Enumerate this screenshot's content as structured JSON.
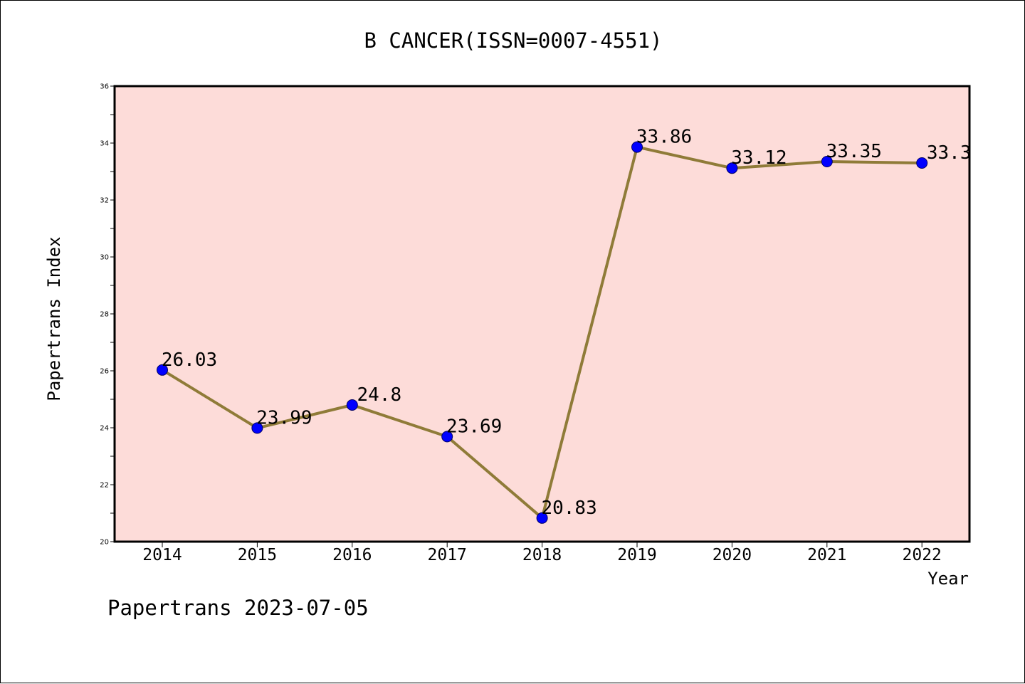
{
  "colors": {
    "plot_background": "#fddcd9",
    "line": "#8f7b38",
    "marker_fill": "#0000ff",
    "marker_edge": "#000066",
    "axis": "#000000"
  },
  "footer": "Papertrans 2023-07-05",
  "chart_data": {
    "type": "line",
    "title": "B CANCER(ISSN=0007-4551)",
    "xlabel": "Year",
    "ylabel": "Papertrans Index",
    "x": [
      "2014",
      "2015",
      "2016",
      "2017",
      "2018",
      "2019",
      "2020",
      "2021",
      "2022"
    ],
    "series": [
      {
        "values": [
          26.03,
          23.99,
          24.8,
          23.69,
          20.83,
          33.86,
          33.12,
          33.35,
          33.3
        ],
        "labels": [
          "26.03",
          "23.99",
          "24.8",
          "23.69",
          "20.83",
          "33.86",
          "33.12",
          "33.35",
          "33.3"
        ]
      }
    ],
    "ylim": [
      20,
      36
    ],
    "yticks": [
      "20",
      "22",
      "24",
      "26",
      "28",
      "30",
      "32",
      "34",
      "36"
    ],
    "grid": false,
    "legend": "none"
  }
}
